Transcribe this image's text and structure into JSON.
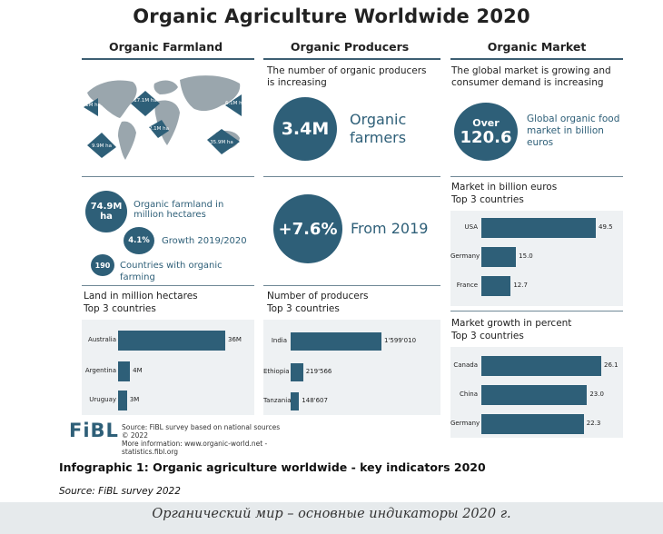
{
  "title": "Organic Agriculture Worldwide 2020",
  "columns": {
    "farmland": "Organic Farmland",
    "producers": "Organic Producers",
    "market": "Organic Market"
  },
  "map": {
    "labels": [
      "3.1M ha",
      "17.1M ha",
      "6.1M ha",
      "2.1M ha",
      "9.9M ha",
      "35.9M ha"
    ]
  },
  "farmland_stats": {
    "area_value": "74.9M ha",
    "area_label": "Organic farmland in million hectares",
    "growth_value": "4.1%",
    "growth_label": "Growth 2019/2020",
    "countries_value": "190",
    "countries_label": "Countries with organic farming"
  },
  "producers_stats": {
    "intro": "The number of organic producers is increasing",
    "count_value": "3.4M",
    "count_label": "Organic farmers",
    "growth_value": "+7.6%",
    "growth_label": "From 2019"
  },
  "market_stats": {
    "intro": "The global market is growing and consumer demand is increasing",
    "over": "Over",
    "value": "120.6",
    "label": "Global organic food market in billion euros"
  },
  "chart_data": [
    {
      "type": "bar",
      "title": "Land in million hectares",
      "subtitle": "Top 3 countries",
      "categories": [
        "Australia",
        "Argentina",
        "Uruguay"
      ],
      "values": [
        36,
        4,
        3
      ],
      "value_labels": [
        "36M",
        "4M",
        "3M"
      ],
      "max": 36
    },
    {
      "type": "bar",
      "title": "Number of producers",
      "subtitle": "Top 3 countries",
      "categories": [
        "India",
        "Ethiopia",
        "Tanzania"
      ],
      "values": [
        1599010,
        219566,
        148607
      ],
      "value_labels": [
        "1'599'010",
        "219'566",
        "148'607"
      ],
      "max": 1599010
    },
    {
      "type": "bar",
      "title": "Market in billion euros",
      "subtitle": "Top 3 countries",
      "categories": [
        "USA",
        "Germany",
        "France"
      ],
      "values": [
        49.5,
        15.0,
        12.7
      ],
      "value_labels": [
        "49.5",
        "15.0",
        "12.7"
      ],
      "max": 49.5
    },
    {
      "type": "bar",
      "title": "Market growth in percent",
      "subtitle": "Top 3 countries",
      "categories": [
        "Canada",
        "China",
        "Germany"
      ],
      "values": [
        26.1,
        23.0,
        22.3
      ],
      "value_labels": [
        "26.1",
        "23.0",
        "22.3"
      ],
      "max": 26.1
    }
  ],
  "footer": {
    "logo": "FiBL",
    "source_line1": "Source: FiBL survey based on national sources",
    "source_line2": "© 2022",
    "source_line3": "More information: www.organic-world.net - statistics.fibl.org"
  },
  "caption": "Infographic 1: Organic agriculture worldwide - key indicators 2020",
  "source": "Source: FiBL survey 2022",
  "russian_caption": "Органический мир – основные индикаторы 2020 г.",
  "colors": {
    "accent": "#2e5f78",
    "rule": "#3d5f73"
  }
}
